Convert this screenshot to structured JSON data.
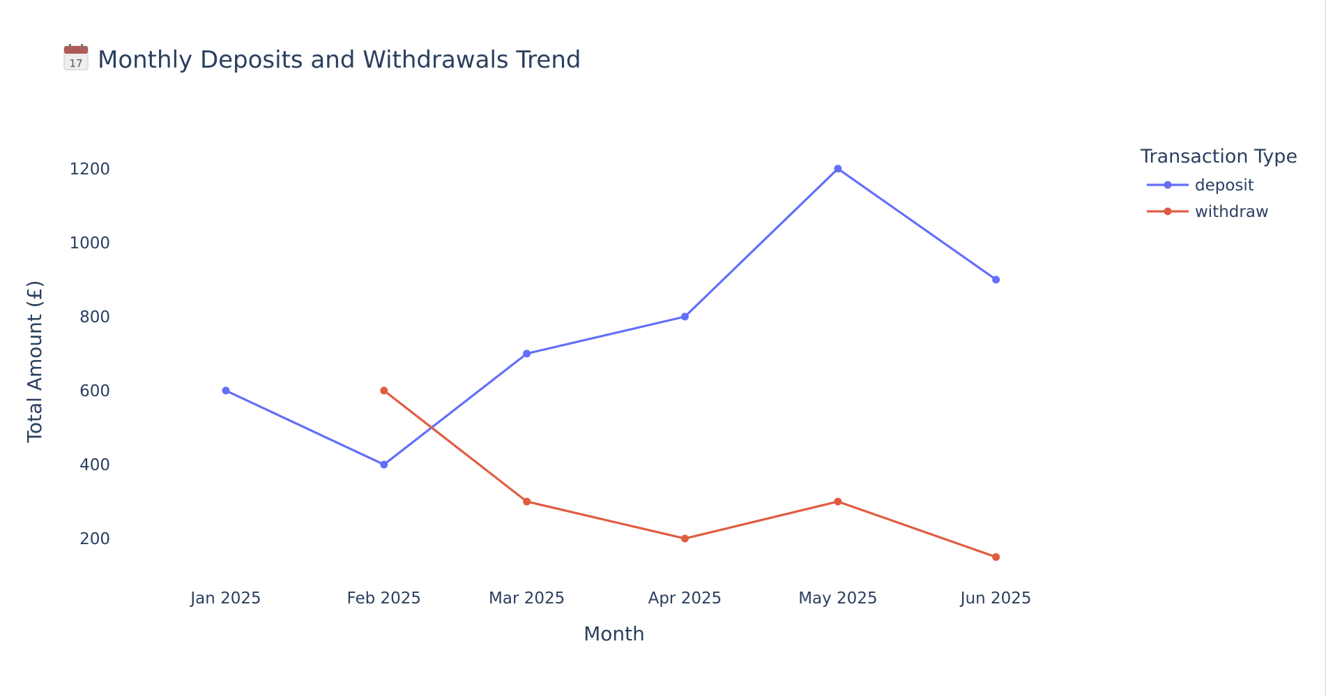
{
  "chart_data": {
    "type": "line",
    "title": "Monthly Deposits and Withdrawals Trend",
    "title_icon": "calendar-icon",
    "title_icon_day": "17",
    "xlabel": "Month",
    "ylabel": "Total Amount (£)",
    "categories": [
      "Jan 2025",
      "Feb 2025",
      "Mar 2025",
      "Apr 2025",
      "May 2025",
      "Jun 2025"
    ],
    "x_dates": [
      "2025-01-01",
      "2025-02-01",
      "2025-03-01",
      "2025-04-01",
      "2025-05-01",
      "2025-06-01"
    ],
    "yticks": [
      200,
      400,
      600,
      800,
      1000,
      1200
    ],
    "ylim": [
      100,
      1260
    ],
    "grid": false,
    "legend_title": "Transaction Type",
    "legend_position": "top-right",
    "series": [
      {
        "name": "deposit",
        "color": "#636efa",
        "x": [
          "2025-01-01",
          "2025-02-01",
          "2025-03-01",
          "2025-04-01",
          "2025-05-01",
          "2025-06-01"
        ],
        "values": [
          600,
          400,
          700,
          800,
          1200,
          900
        ]
      },
      {
        "name": "withdraw",
        "color": "#e05c41",
        "x": [
          "2025-02-01",
          "2025-03-01",
          "2025-04-01",
          "2025-05-01",
          "2025-06-01"
        ],
        "values": [
          600,
          300,
          200,
          300,
          150
        ]
      }
    ]
  }
}
